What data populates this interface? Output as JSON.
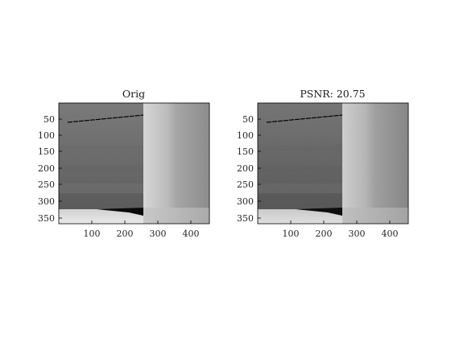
{
  "panels": [
    {
      "title": "Orig",
      "xticks": [
        "100",
        "200",
        "300",
        "400"
      ],
      "yticks": [
        "50",
        "100",
        "150",
        "200",
        "250",
        "300",
        "350"
      ]
    },
    {
      "title": "PSNR: 20.75",
      "xticks": [
        "100",
        "200",
        "300",
        "400"
      ],
      "yticks": [
        "50",
        "100",
        "150",
        "200",
        "250",
        "300",
        "350"
      ]
    }
  ]
}
